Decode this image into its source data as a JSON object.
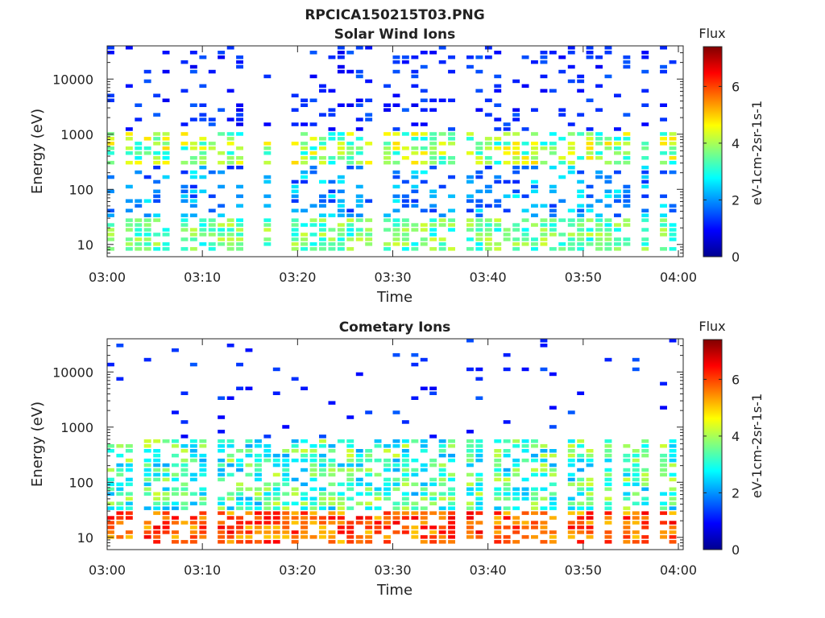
{
  "figure_title": "RPCICA150215T03.PNG",
  "chart_data": [
    {
      "type": "heatmap",
      "title": "Solar Wind Ions",
      "xlabel": "Time",
      "ylabel": "Energy (eV)",
      "x_tick_labels": [
        "03:00",
        "03:10",
        "03:20",
        "03:30",
        "03:40",
        "03:50",
        "04:00"
      ],
      "x_range": [
        "03:00",
        "04:00"
      ],
      "y_tick_labels": [
        "10",
        "100",
        "1000",
        "10000"
      ],
      "y_scale": "log",
      "y_range_eV": [
        6,
        40000
      ],
      "colorbar": {
        "title": "Flux",
        "label": "eV-1cm-2sr-1s-1",
        "tick_labels": [
          "0",
          "2",
          "4",
          "6"
        ],
        "range": [
          0,
          7.4
        ],
        "colormap": "jet"
      },
      "grid": false,
      "profile": {
        "high_energy_sparse_low_flux": true,
        "core_band_eV": [
          250,
          1200
        ],
        "core_flux": 3.8,
        "low_band_eV": [
          8,
          30
        ],
        "low_band_flux": 3.5
      }
    },
    {
      "type": "heatmap",
      "title": "Cometary Ions",
      "xlabel": "Time",
      "ylabel": "Energy (eV)",
      "x_tick_labels": [
        "03:00",
        "03:10",
        "03:20",
        "03:30",
        "03:40",
        "03:50",
        "04:00"
      ],
      "x_range": [
        "03:00",
        "04:00"
      ],
      "y_tick_labels": [
        "10",
        "100",
        "1000",
        "10000"
      ],
      "y_scale": "log",
      "y_range_eV": [
        6,
        40000
      ],
      "colorbar": {
        "title": "Flux",
        "label": "eV-1cm-2sr-1s-1",
        "tick_labels": [
          "0",
          "2",
          "4",
          "6"
        ],
        "range": [
          0,
          7.4
        ],
        "colormap": "jet"
      },
      "grid": false,
      "profile": {
        "high_energy_sparse_low_flux": true,
        "core_band_eV": [
          30,
          600
        ],
        "core_flux": 3.2,
        "low_band_eV": [
          8,
          30
        ],
        "low_band_flux": 5.8
      }
    }
  ]
}
